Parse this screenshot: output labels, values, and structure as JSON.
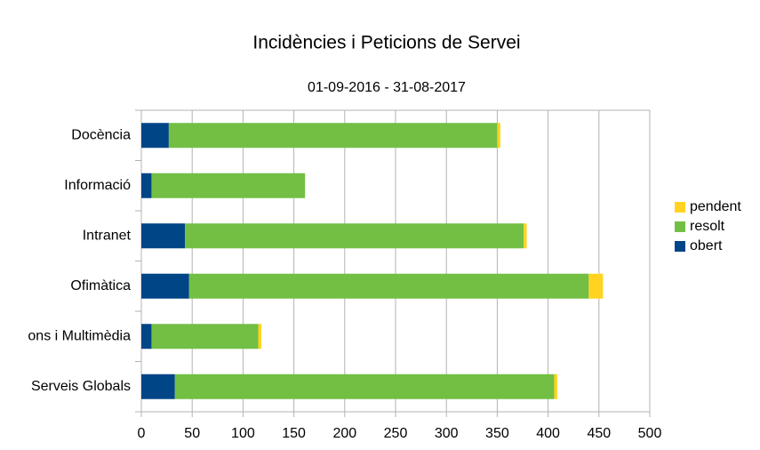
{
  "chart_data": {
    "type": "stacked_bar_horizontal",
    "title": "Incidències i Peticions de Servei",
    "subtitle": "01-09-2016 - 31-08-2017",
    "categories": [
      "Docència",
      "Informació",
      "Intranet",
      "Ofimàtica",
      "ons i Multimèdia",
      "Serveis Globals"
    ],
    "series": [
      {
        "name": "obert",
        "color": "#004586",
        "values": [
          27,
          10,
          43,
          47,
          10,
          33
        ]
      },
      {
        "name": "resolt",
        "color": "#72bf44",
        "values": [
          323,
          151,
          333,
          393,
          105,
          373
        ]
      },
      {
        "name": "pendent",
        "color": "#ffd320",
        "values": [
          3,
          0,
          3,
          14,
          3,
          3
        ]
      }
    ],
    "xlim": [
      0,
      500
    ],
    "xticks": [
      0,
      50,
      100,
      150,
      200,
      250,
      300,
      350,
      400,
      450,
      500
    ],
    "grid": true,
    "legend": "right"
  }
}
